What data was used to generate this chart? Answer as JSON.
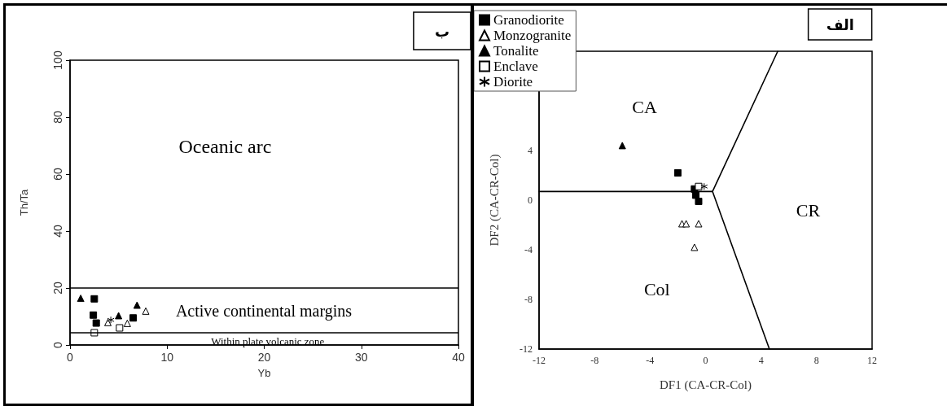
{
  "chart_data": [
    {
      "type": "scatter",
      "title": "ب",
      "xlabel": "Yb",
      "ylabel": "Th/Ta",
      "xlim": [
        0,
        40
      ],
      "xticks": [
        0,
        10,
        20,
        30,
        40
      ],
      "ylim": [
        0,
        100
      ],
      "yticks": [
        0,
        20,
        40,
        60,
        80,
        100
      ],
      "legend": false,
      "series": [
        {
          "color": "#000000",
          "marker": "square",
          "x": [
            2.5,
            2.4,
            2.7,
            6.5
          ],
          "values": [
            16.2,
            10.5,
            7.7,
            9.5
          ]
        },
        {
          "color": "#ffffff",
          "marker": "triangle",
          "x": [
            3.9,
            5.9,
            7.8
          ],
          "values": [
            7.9,
            7.6,
            11.9
          ]
        },
        {
          "color": "#000000",
          "marker": "triangle",
          "x": [
            1.1,
            5.0,
            6.9
          ],
          "values": [
            16.4,
            10.3,
            14.0
          ]
        },
        {
          "color": "#ffffff",
          "marker": "square",
          "x": [
            2.5,
            5.1
          ],
          "values": [
            4.3,
            6.0
          ]
        },
        {
          "color": "#000000",
          "marker": "cross",
          "x": [
            4.2
          ],
          "values": [
            8.8
          ]
        }
      ],
      "ref_lines": [
        {
          "axis": "y",
          "value": 20
        },
        {
          "axis": "y",
          "value": 4.3
        }
      ],
      "annotations": [
        "Oceanic arc",
        "Active continental margins",
        "Within plate volcanic zone"
      ]
    },
    {
      "type": "scatter",
      "title": "الف",
      "xlabel": "DF1 (CA-CR-Col)",
      "ylabel": "DF2 (CA-CR-Col)",
      "xlim": [
        -12,
        12
      ],
      "xticks": [
        -12,
        -8,
        -4,
        0,
        4,
        8,
        12
      ],
      "ylim": [
        -12,
        12
      ],
      "yticks": [
        -12,
        -8,
        -4,
        0,
        4
      ],
      "legend": "top left",
      "series": [
        {
          "name": "Granodiorite",
          "color": "#000000",
          "marker": "square",
          "x": [
            -2.0,
            -0.8,
            -0.7,
            -0.5
          ],
          "values": [
            2.2,
            0.9,
            0.4,
            -0.1
          ]
        },
        {
          "name": "Monzogranite",
          "color": "#ffffff",
          "marker": "triangle",
          "x": [
            -1.7,
            -1.4,
            -0.5,
            -0.8
          ],
          "values": [
            -1.9,
            -1.9,
            -1.9,
            -3.8
          ]
        },
        {
          "name": "Tonalite",
          "color": "#000000",
          "marker": "triangle",
          "x": [
            -6.0
          ],
          "values": [
            4.4
          ]
        },
        {
          "name": "Enclave",
          "color": "#ffffff",
          "marker": "square",
          "x": [
            -0.5
          ],
          "values": [
            1.1
          ]
        },
        {
          "name": "Diorite",
          "color": "#000000",
          "marker": "cross",
          "x": [
            -0.1
          ],
          "values": [
            1.1
          ]
        },
        {
          "type": "line",
          "color": "#000000",
          "marker": "none",
          "x": [
            -12,
            0.5
          ],
          "values": [
            0.7,
            0.7
          ]
        },
        {
          "type": "line",
          "color": "#000000",
          "marker": "none",
          "x": [
            0.5,
            5.2
          ],
          "values": [
            0.7,
            12
          ]
        },
        {
          "type": "line",
          "color": "#000000",
          "marker": "none",
          "x": [
            0.5,
            4.6
          ],
          "values": [
            0.7,
            -12
          ]
        }
      ],
      "annotations": [
        "CA",
        "CR",
        "Col"
      ]
    }
  ]
}
